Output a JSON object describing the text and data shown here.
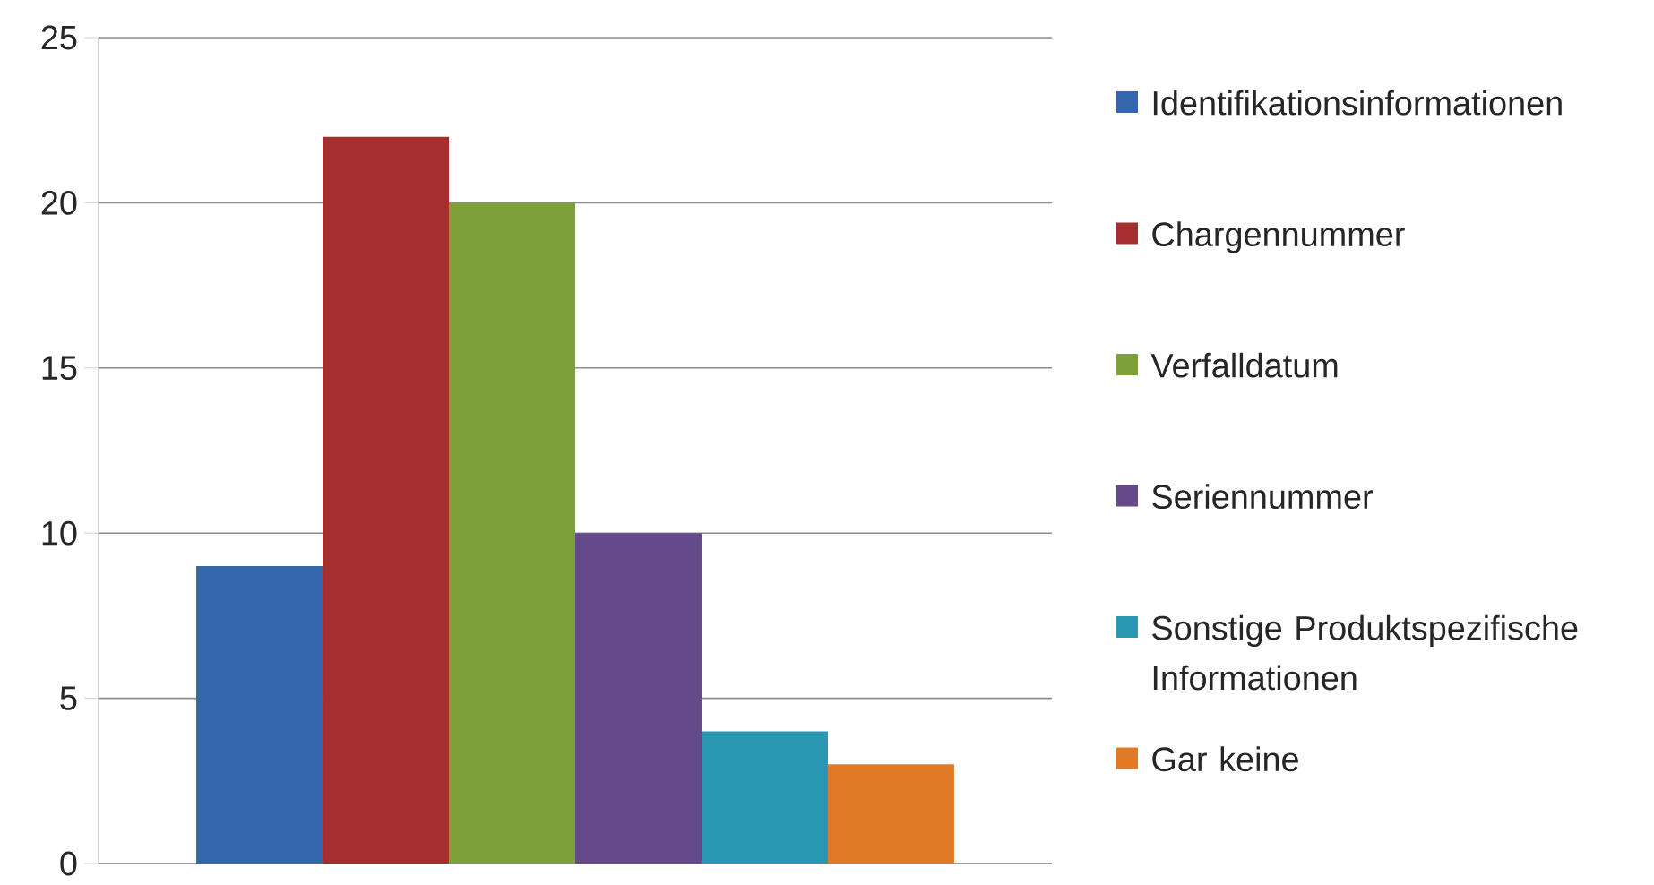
{
  "chart_data": {
    "type": "bar",
    "categories": [
      null
    ],
    "series": [
      {
        "name": "Identifikationsinformationen",
        "color": "#3366aa",
        "values": [
          9
        ]
      },
      {
        "name": "Chargennummer",
        "color": "#a52e2e",
        "values": [
          22
        ]
      },
      {
        "name": "Verfalldatum",
        "color": "#7da03a",
        "values": [
          20
        ]
      },
      {
        "name": "Seriennummer",
        "color": "#644a8a",
        "values": [
          10
        ]
      },
      {
        "name": "Sonstige Produktspezifische Informationen",
        "color": "#2a97b2",
        "values": [
          4
        ]
      },
      {
        "name": "Gar keine",
        "color": "#e07a26",
        "values": [
          3
        ]
      }
    ],
    "ylim": [
      0,
      25
    ],
    "yticks": [
      0,
      5,
      10,
      15,
      20,
      25
    ],
    "grid": "y",
    "legend": "right",
    "tick_labels": "y"
  }
}
